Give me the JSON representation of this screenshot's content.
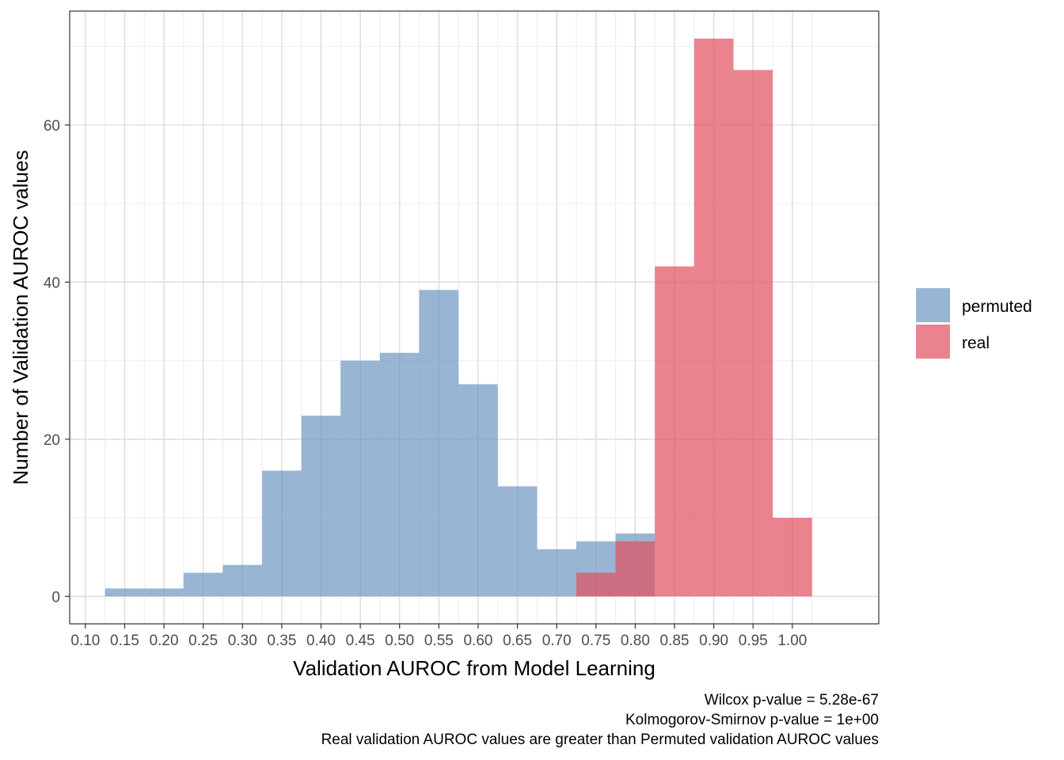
{
  "chart_data": {
    "type": "bar",
    "title": "",
    "xlabel": "Validation AUROC from Model Learning",
    "ylabel": "Number of Validation AUROC values",
    "xlim": [
      0.08,
      1.11
    ],
    "ylim": [
      -3.5,
      74.5
    ],
    "x_ticks": [
      "0.10",
      "0.15",
      "0.20",
      "0.25",
      "0.30",
      "0.35",
      "0.40",
      "0.45",
      "0.50",
      "0.55",
      "0.60",
      "0.65",
      "0.70",
      "0.75",
      "0.80",
      "0.85",
      "0.90",
      "0.95",
      "1.00"
    ],
    "y_ticks": [
      "0",
      "20",
      "40",
      "60"
    ],
    "bin_width": 0.05,
    "grid": true,
    "legend_position": "right",
    "series": [
      {
        "name": "permuted",
        "color": "#6D96C2",
        "bins": [
          {
            "center": 0.15,
            "count": 1
          },
          {
            "center": 0.2,
            "count": 1
          },
          {
            "center": 0.25,
            "count": 3
          },
          {
            "center": 0.3,
            "count": 4
          },
          {
            "center": 0.35,
            "count": 16
          },
          {
            "center": 0.4,
            "count": 23
          },
          {
            "center": 0.45,
            "count": 30
          },
          {
            "center": 0.5,
            "count": 31
          },
          {
            "center": 0.55,
            "count": 39
          },
          {
            "center": 0.6,
            "count": 27
          },
          {
            "center": 0.65,
            "count": 14
          },
          {
            "center": 0.7,
            "count": 6
          },
          {
            "center": 0.75,
            "count": 7
          },
          {
            "center": 0.8,
            "count": 8
          }
        ]
      },
      {
        "name": "real",
        "color": "#E34F5F",
        "bins": [
          {
            "center": 0.75,
            "count": 3
          },
          {
            "center": 0.8,
            "count": 7
          },
          {
            "center": 0.85,
            "count": 42
          },
          {
            "center": 0.9,
            "count": 71
          },
          {
            "center": 0.95,
            "count": 67
          },
          {
            "center": 1.0,
            "count": 10
          }
        ]
      }
    ],
    "caption": [
      "Wilcox p-value = 5.28e-67",
      "Kolmogorov-Smirnov p-value = 1e+00",
      "Real validation AUROC values are greater than Permuted validation AUROC values"
    ]
  }
}
